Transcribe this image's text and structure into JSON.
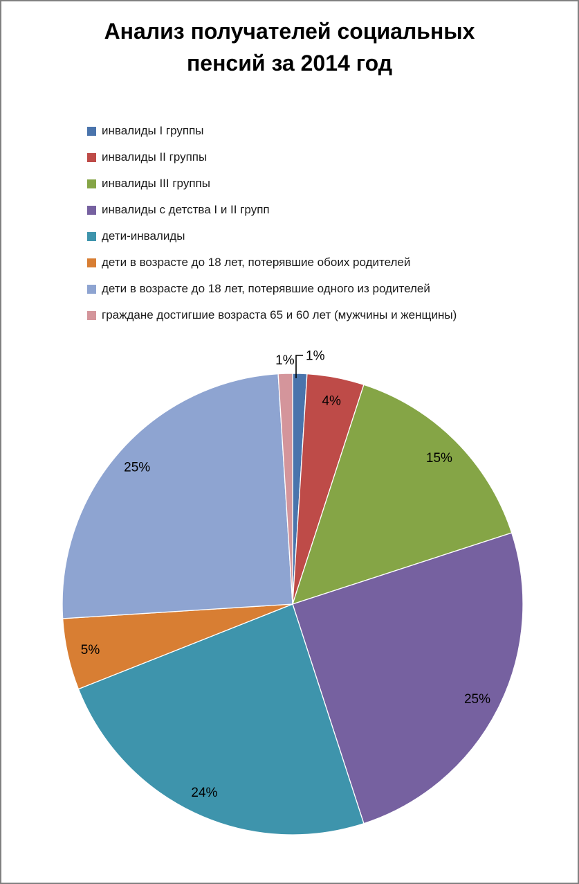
{
  "page": {
    "background": "#FFFFFF",
    "border_color": "#808080"
  },
  "chart_data": {
    "type": "pie",
    "title": "Анализ получателей социальных пенсий за 2014 год",
    "legend_position": "left",
    "start_angle_deg": 0,
    "direction": "clockwise",
    "slices": [
      {
        "label": "инвалиды I группы",
        "value": 1,
        "percent_label": "1%",
        "color": "#4A74AC",
        "label_placement": "callout"
      },
      {
        "label": "инвалиды II группы",
        "value": 4,
        "percent_label": "4%",
        "color": "#BE4B48",
        "label_placement": "inside"
      },
      {
        "label": "инвалиды III группы",
        "value": 15,
        "percent_label": "15%",
        "color": "#85A546",
        "label_placement": "inside"
      },
      {
        "label": "инвалиды с детства I и II групп",
        "value": 25,
        "percent_label": "25%",
        "color": "#7661A0",
        "label_placement": "inside"
      },
      {
        "label": "дети-инвалиды",
        "value": 24,
        "percent_label": "24%",
        "color": "#3E94AC",
        "label_placement": "inside"
      },
      {
        "label": "дети в возрасте до 18 лет, потерявшие обоих родителей",
        "value": 5,
        "percent_label": "5%",
        "color": "#D87E33",
        "label_placement": "inside"
      },
      {
        "label": "дети в возрасте до 18 лет, потерявшие одного из родителей",
        "value": 25,
        "percent_label": "25%",
        "color": "#8EA4D1",
        "label_placement": "inside"
      },
      {
        "label": "граждане достигшие возраста 65 и 60 лет (мужчины и женщины)",
        "value": 1,
        "percent_label": "1%",
        "color": "#D4959B",
        "label_placement": "outside"
      }
    ]
  }
}
